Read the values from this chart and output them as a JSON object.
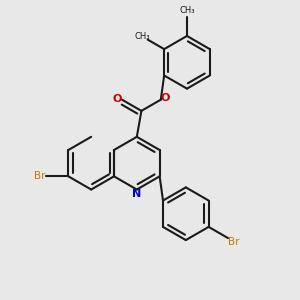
{
  "bg_color": "#e8e8e8",
  "bond_color": "#1a1a1a",
  "n_color": "#0000cc",
  "o_color": "#cc0000",
  "br_color": "#cc7700",
  "lw": 1.5,
  "dbo": 0.05,
  "figsize": [
    3.0,
    3.0
  ],
  "dpi": 100,
  "xlim": [
    -0.2,
    2.8
  ],
  "ylim": [
    -2.2,
    1.2
  ]
}
